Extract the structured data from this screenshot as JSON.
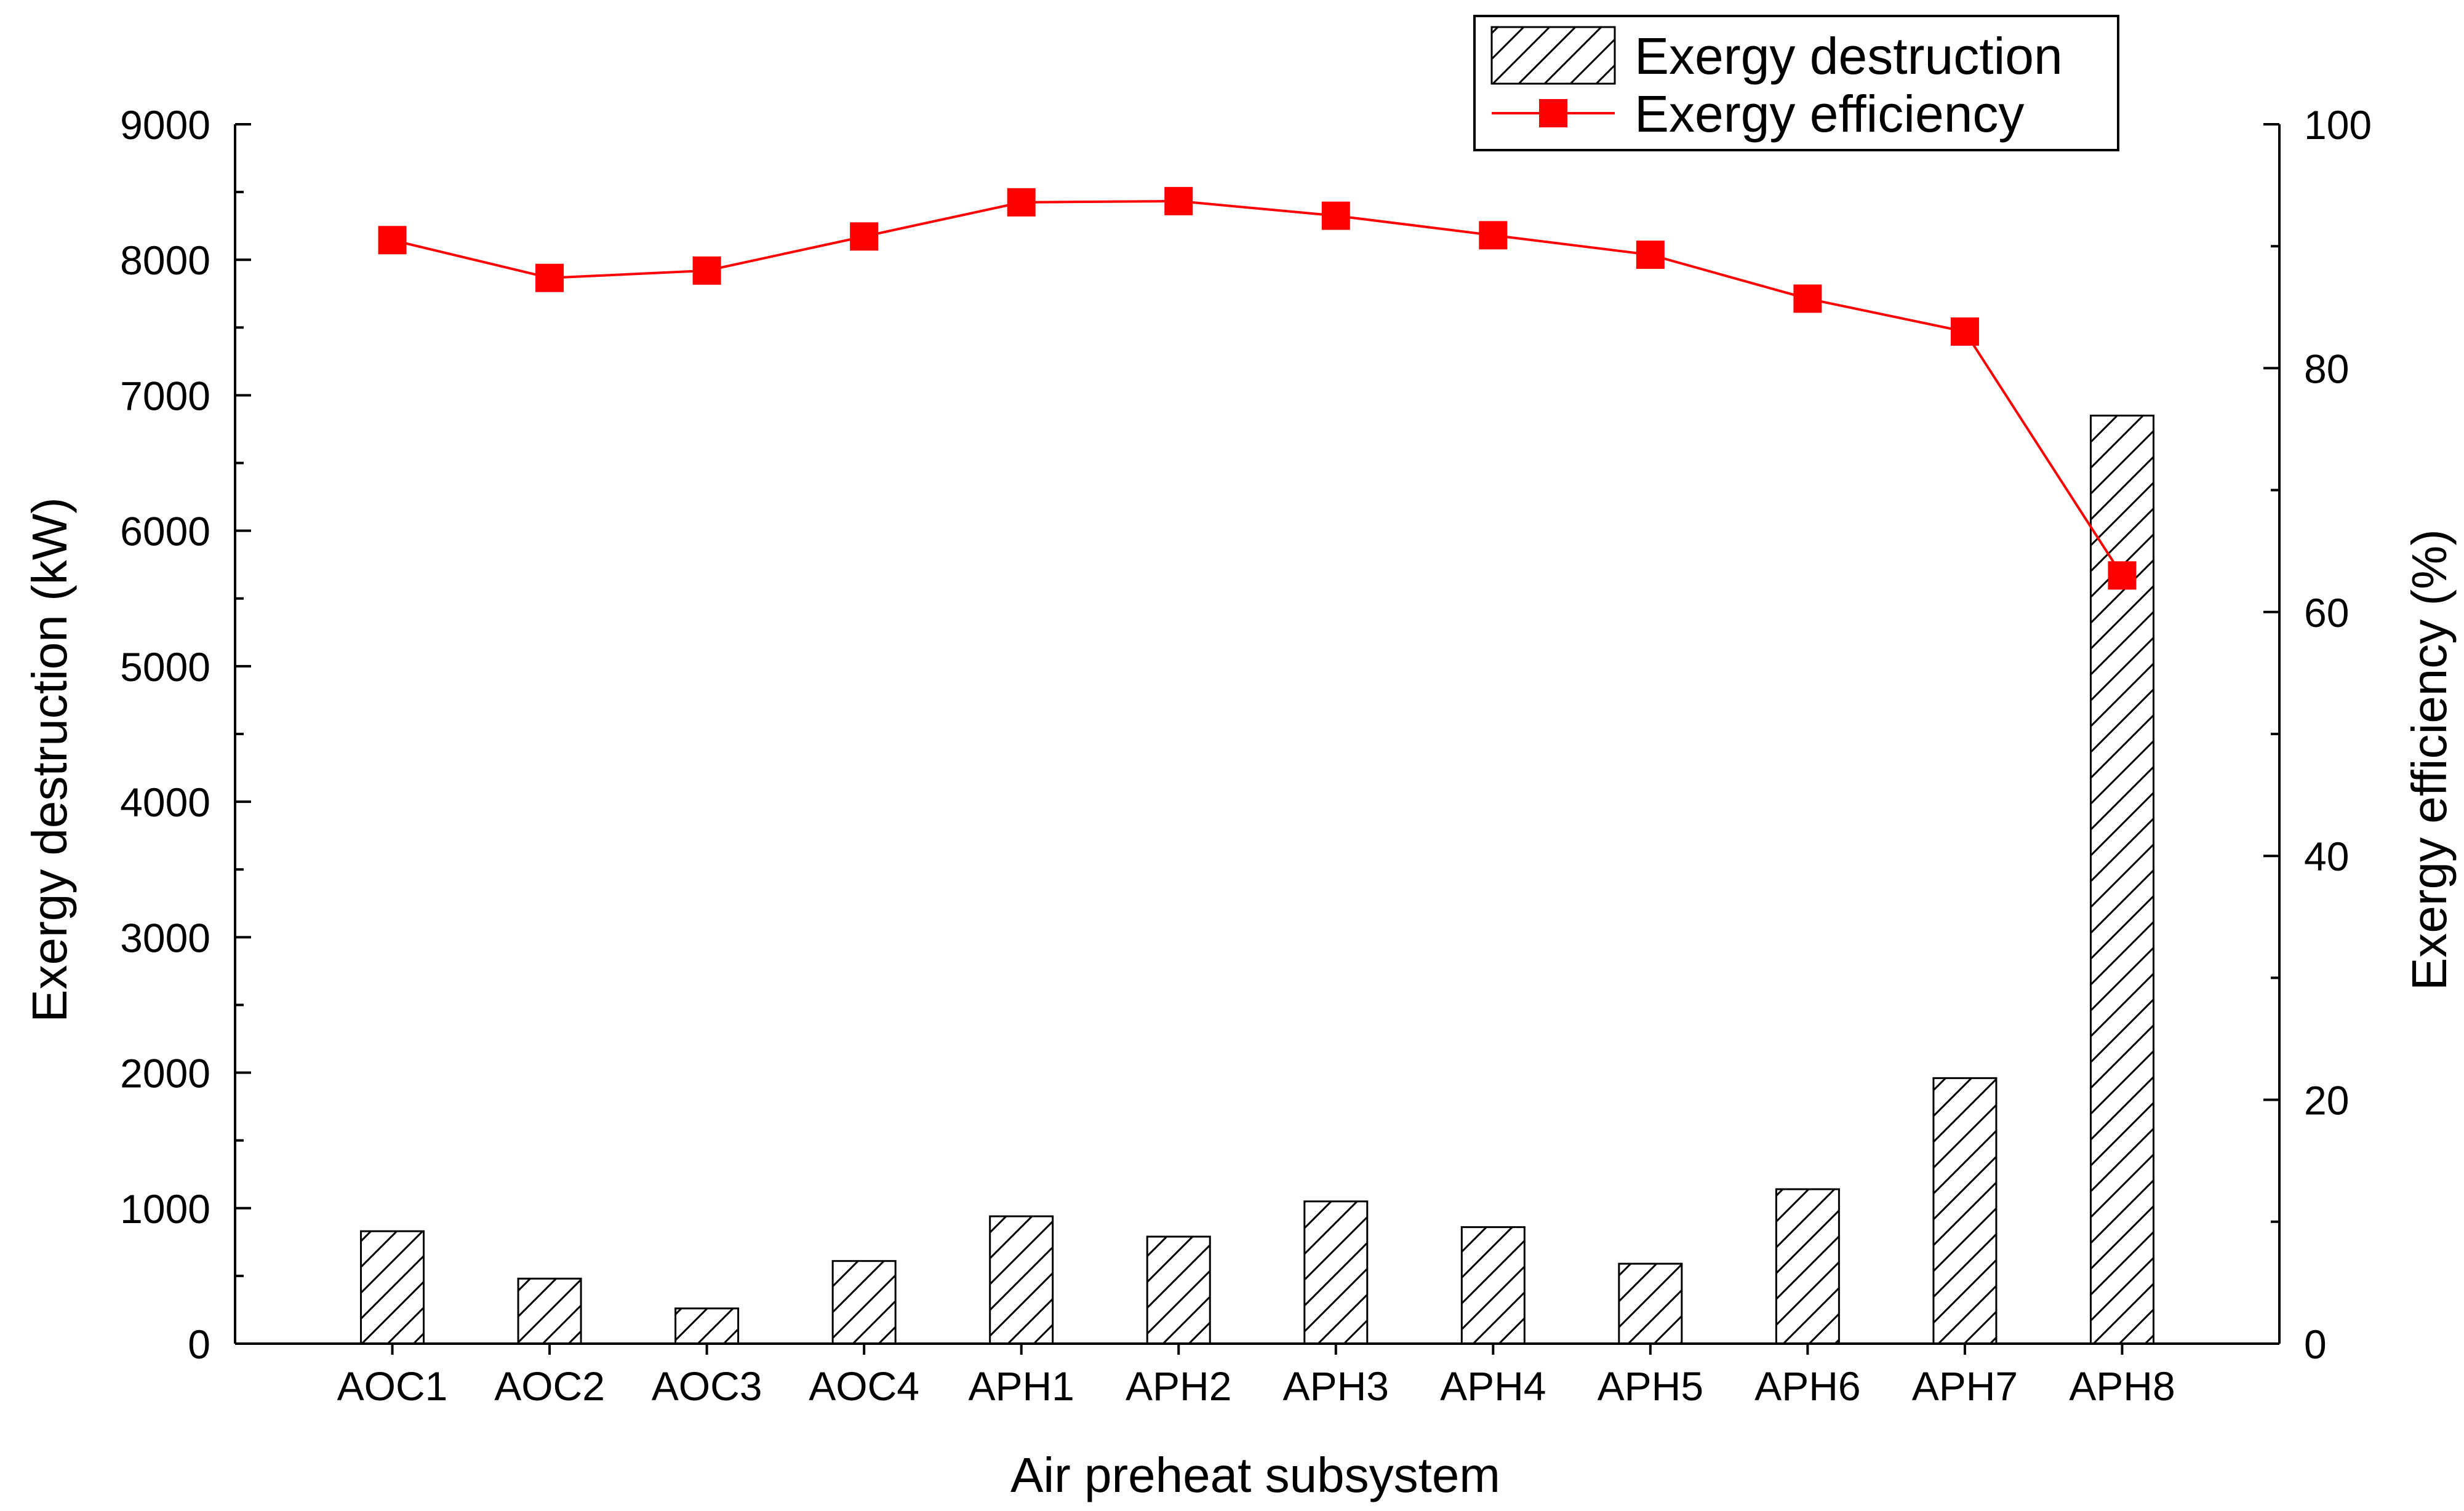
{
  "chart_data": {
    "type": "bar",
    "categories": [
      "AOC1",
      "AOC2",
      "AOC3",
      "AOC4",
      "APH1",
      "APH2",
      "APH3",
      "APH4",
      "APH5",
      "APH6",
      "APH7",
      "APH8"
    ],
    "series": [
      {
        "name": "Exergy destruction",
        "type": "bar",
        "axis": "left",
        "pattern": "hatched",
        "values": [
          830,
          480,
          260,
          610,
          940,
          790,
          1050,
          860,
          590,
          1140,
          1960,
          6850
        ]
      },
      {
        "name": "Exergy efficiency",
        "type": "line",
        "axis": "right",
        "marker": "square",
        "color": "#ff0000",
        "values": [
          90.5,
          87.4,
          88.0,
          90.8,
          93.6,
          93.7,
          92.5,
          90.9,
          89.3,
          85.7,
          83.0,
          63.0
        ]
      }
    ],
    "xlabel": "Air preheat subsystem",
    "ylabel": "Exergy destruction (kW)",
    "y2label": "Exergy efficiency (%)",
    "ylim": [
      0,
      9000
    ],
    "y2lim": [
      0,
      100
    ],
    "yticks": [
      0,
      1000,
      2000,
      3000,
      4000,
      5000,
      6000,
      7000,
      8000,
      9000
    ],
    "y2ticks": [
      0,
      20,
      40,
      60,
      80,
      100
    ],
    "grid": false,
    "legend_position": "top-right"
  }
}
